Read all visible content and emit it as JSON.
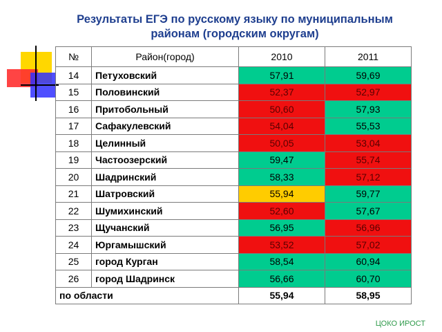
{
  "title": {
    "line1": "Результаты ЕГЭ по русскому языку по муниципальным",
    "line2": "районам (городским округам)"
  },
  "colors": {
    "green": "#00cc8f",
    "red": "#f01010",
    "yellow": "#ffcc00",
    "white": "#ffffff"
  },
  "table": {
    "header": [
      "№",
      "Район(город)",
      "2010",
      "2011"
    ],
    "rows": [
      {
        "cells": [
          "14",
          "Петуховский",
          "57,91",
          "59,69"
        ],
        "fills": [
          "green",
          "green"
        ]
      },
      {
        "cells": [
          "15",
          "Половинский",
          "52,37",
          "52,97"
        ],
        "fills": [
          "red",
          "red"
        ]
      },
      {
        "cells": [
          "16",
          "Притобольный",
          "50,60",
          "57,93"
        ],
        "fills": [
          "red",
          "green"
        ]
      },
      {
        "cells": [
          "17",
          "Сафакулевский",
          "54,04",
          "55,53"
        ],
        "fills": [
          "red",
          "green"
        ]
      },
      {
        "cells": [
          "18",
          "Целинный",
          "50,05",
          "53,04"
        ],
        "fills": [
          "red",
          "red"
        ]
      },
      {
        "cells": [
          "19",
          "Частоозерский",
          "59,47",
          "55,74"
        ],
        "fills": [
          "green",
          "red"
        ]
      },
      {
        "cells": [
          "20",
          "Шадринский",
          "58,33",
          "57,12"
        ],
        "fills": [
          "green",
          "red"
        ]
      },
      {
        "cells": [
          "21",
          "Шатровский",
          "55,94",
          "59,77"
        ],
        "fills": [
          "yellow",
          "green"
        ]
      },
      {
        "cells": [
          "22",
          "Шумихинский",
          "52,60",
          "57,67"
        ],
        "fills": [
          "red",
          "green"
        ]
      },
      {
        "cells": [
          "23",
          "Щучанский",
          "56,95",
          "56,96"
        ],
        "fills": [
          "green",
          "red"
        ]
      },
      {
        "cells": [
          "24",
          "Юргамышский",
          "53,52",
          "57,02"
        ],
        "fills": [
          "red",
          "red"
        ]
      },
      {
        "cells": [
          "25",
          "город Курган",
          "58,54",
          "60,94"
        ],
        "fills": [
          "green",
          "green"
        ]
      },
      {
        "cells": [
          "26",
          "город Шадринск",
          "56,66",
          "60,70"
        ],
        "fills": [
          "green",
          "green"
        ]
      }
    ],
    "total": {
      "label": "по области",
      "cells": [
        "55,94",
        "58,95"
      ]
    }
  },
  "footer": "ЦОКО ИРОСТ"
}
